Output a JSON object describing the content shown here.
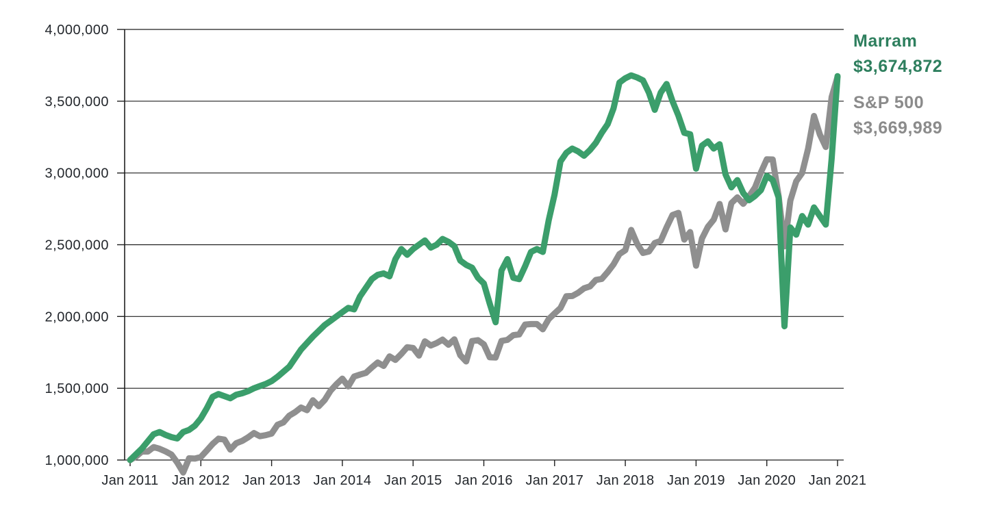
{
  "page": {
    "background": "#ffffff"
  },
  "legend": {
    "series": [
      {
        "name": "Marram",
        "value": "$3,674,872",
        "color": "#2e7f5e"
      },
      {
        "name": "S&P 500",
        "value": "$3,669,989",
        "color": "#8b8b8b"
      }
    ]
  },
  "chart_data": {
    "type": "line",
    "title": "",
    "xlabel": "",
    "ylabel": "",
    "unit": "USD",
    "grid": "horizontal",
    "legend_position": "top-right",
    "ylim": [
      1000000,
      4000000
    ],
    "y_ticks": [
      1000000,
      1500000,
      2000000,
      2500000,
      3000000,
      3500000,
      4000000
    ],
    "y_tick_labels": [
      "1,000,000",
      "1,500,000",
      "2,000,000",
      "2,500,000",
      "3,000,000",
      "3,500,000",
      "4,000,000"
    ],
    "x_tick_labels": [
      "Jan 2011",
      "Jan 2012",
      "Jan 2013",
      "Jan 2014",
      "Jan 2015",
      "Jan 2016",
      "Jan 2017",
      "Jan 2018",
      "Jan 2019",
      "Jan 2020",
      "Jan 2021"
    ],
    "points_per_year": 12,
    "series": [
      {
        "name": "Marram",
        "color": "#3b9e6b",
        "end_label": "$3,674,872",
        "end_value": 3674872,
        "values": [
          1000000,
          1040000,
          1080000,
          1130000,
          1180000,
          1195000,
          1175000,
          1160000,
          1150000,
          1195000,
          1210000,
          1240000,
          1290000,
          1360000,
          1440000,
          1460000,
          1445000,
          1430000,
          1455000,
          1465000,
          1480000,
          1500000,
          1515000,
          1530000,
          1550000,
          1580000,
          1615000,
          1650000,
          1710000,
          1770000,
          1815000,
          1860000,
          1900000,
          1940000,
          1970000,
          2000000,
          2030000,
          2060000,
          2050000,
          2140000,
          2200000,
          2260000,
          2290000,
          2300000,
          2280000,
          2400000,
          2470000,
          2430000,
          2470000,
          2500000,
          2530000,
          2480000,
          2500000,
          2540000,
          2520000,
          2490000,
          2390000,
          2360000,
          2340000,
          2270000,
          2230000,
          2090000,
          1960000,
          2320000,
          2400000,
          2270000,
          2260000,
          2350000,
          2450000,
          2470000,
          2450000,
          2670000,
          2850000,
          3080000,
          3140000,
          3170000,
          3150000,
          3120000,
          3160000,
          3210000,
          3280000,
          3340000,
          3450000,
          3630000,
          3660000,
          3680000,
          3665000,
          3645000,
          3560000,
          3440000,
          3560000,
          3620000,
          3500000,
          3400000,
          3280000,
          3270000,
          3030000,
          3190000,
          3220000,
          3170000,
          3200000,
          2990000,
          2900000,
          2950000,
          2860000,
          2810000,
          2840000,
          2880000,
          2980000,
          2950000,
          2830000,
          1932000,
          2620000,
          2570000,
          2700000,
          2640000,
          2760000,
          2700000,
          2640000,
          3100000,
          3674872
        ]
      },
      {
        "name": "S&P 500",
        "color": "#8f8f8f",
        "end_label": "$3,669,989",
        "end_value": 3669989,
        "values": [
          1000000,
          1024000,
          1059000,
          1059000,
          1090000,
          1078000,
          1060000,
          1038000,
          982000,
          913000,
          1012000,
          1010000,
          1021000,
          1066000,
          1112000,
          1149000,
          1142000,
          1073000,
          1117000,
          1133000,
          1158000,
          1188000,
          1166000,
          1173000,
          1184000,
          1245000,
          1262000,
          1309000,
          1334000,
          1366000,
          1347000,
          1416000,
          1375000,
          1418000,
          1483000,
          1528000,
          1567000,
          1513000,
          1582000,
          1595000,
          1607000,
          1645000,
          1679000,
          1656000,
          1722000,
          1698000,
          1739000,
          1786000,
          1781000,
          1728000,
          1827000,
          1798000,
          1815000,
          1839000,
          1803000,
          1841000,
          1730000,
          1687000,
          1829000,
          1835000,
          1806000,
          1716000,
          1714000,
          1830000,
          1837000,
          1870000,
          1875000,
          1944000,
          1947000,
          1947000,
          1911000,
          1982000,
          2021000,
          2059000,
          2141000,
          2143000,
          2165000,
          2196000,
          2210000,
          2255000,
          2262000,
          2309000,
          2363000,
          2435000,
          2462000,
          2603000,
          2507000,
          2443000,
          2453000,
          2512000,
          2527000,
          2621000,
          2707000,
          2722000,
          2536000,
          2588000,
          2354000,
          2543000,
          2624000,
          2675000,
          2784000,
          2607000,
          2790000,
          2830000,
          2785000,
          2838000,
          2899000,
          3004000,
          3095000,
          3094000,
          2840000,
          2489000,
          2808000,
          2942000,
          3000000,
          3169000,
          3397000,
          3268000,
          3181000,
          3529000,
          3669989
        ]
      }
    ],
    "axis_color": "#1f1f1f",
    "label_color": "#23272c"
  }
}
